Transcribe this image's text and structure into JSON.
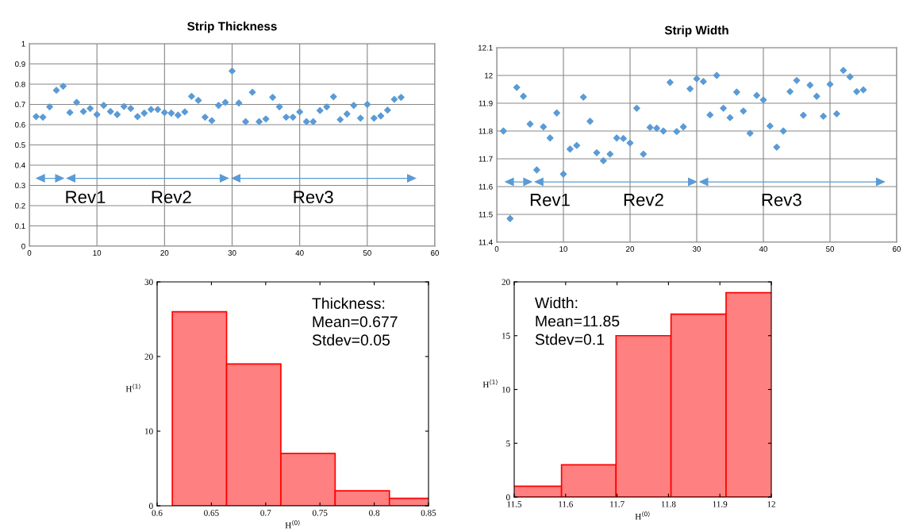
{
  "chart_data": [
    {
      "type": "scatter",
      "title": "Strip Thickness",
      "marker": "diamond",
      "grid": true,
      "color": "#5b9bd5",
      "x": [
        1,
        2,
        3,
        4,
        5,
        6,
        7,
        8,
        9,
        10,
        11,
        12,
        13,
        14,
        15,
        16,
        17,
        18,
        19,
        20,
        21,
        22,
        23,
        24,
        25,
        26,
        27,
        28,
        29,
        30,
        31,
        32,
        33,
        34,
        35,
        36,
        37,
        38,
        39,
        40,
        41,
        42,
        43,
        44,
        45,
        46,
        47,
        48,
        49,
        50,
        51,
        52,
        53,
        54,
        55
      ],
      "values": [
        0.64,
        0.637,
        0.688,
        0.77,
        0.79,
        0.66,
        0.71,
        0.665,
        0.68,
        0.65,
        0.695,
        0.665,
        0.65,
        0.69,
        0.68,
        0.64,
        0.657,
        0.675,
        0.675,
        0.66,
        0.657,
        0.647,
        0.663,
        0.74,
        0.72,
        0.637,
        0.62,
        0.695,
        0.71,
        0.865,
        0.707,
        0.615,
        0.76,
        0.615,
        0.628,
        0.735,
        0.688,
        0.637,
        0.637,
        0.663,
        0.615,
        0.615,
        0.67,
        0.688,
        0.738,
        0.625,
        0.653,
        0.695,
        0.632,
        0.7,
        0.632,
        0.643,
        0.672,
        0.725,
        0.735
      ],
      "xlim": [
        0,
        60
      ],
      "xticks": [
        0,
        10,
        20,
        30,
        40,
        50,
        60
      ],
      "ylim": [
        0,
        1
      ],
      "yticks": [
        0,
        0.1,
        0.2,
        0.3,
        0.4,
        0.5,
        0.6,
        0.7,
        0.8,
        0.9,
        1
      ],
      "annotations": [
        "Rev1",
        "Rev2",
        "Rev3"
      ]
    },
    {
      "type": "scatter",
      "title": "Strip Width",
      "marker": "diamond",
      "grid": true,
      "color": "#5b9bd5",
      "x": [
        1,
        2,
        3,
        4,
        5,
        6,
        7,
        8,
        9,
        10,
        11,
        12,
        13,
        14,
        15,
        16,
        17,
        18,
        19,
        20,
        21,
        22,
        23,
        24,
        25,
        26,
        27,
        28,
        29,
        30,
        31,
        32,
        33,
        34,
        35,
        36,
        37,
        38,
        39,
        40,
        41,
        42,
        43,
        44,
        45,
        46,
        47,
        48,
        49,
        50,
        51,
        52,
        53,
        54,
        55
      ],
      "values": [
        11.8,
        11.485,
        11.957,
        11.925,
        11.825,
        11.66,
        11.815,
        11.775,
        11.865,
        11.645,
        11.735,
        11.748,
        11.922,
        11.835,
        11.722,
        11.693,
        11.717,
        11.775,
        11.773,
        11.757,
        11.882,
        11.717,
        11.813,
        11.81,
        11.8,
        11.975,
        11.798,
        11.815,
        11.952,
        11.988,
        11.978,
        11.858,
        12.0,
        11.882,
        11.848,
        11.94,
        11.872,
        11.792,
        11.928,
        11.912,
        11.818,
        11.742,
        11.8,
        11.942,
        11.982,
        11.857,
        11.965,
        11.925,
        11.853,
        11.968,
        11.862,
        12.018,
        11.995,
        11.942,
        11.948
      ],
      "xlim": [
        0,
        60
      ],
      "xticks": [
        0,
        10,
        20,
        30,
        40,
        50,
        60
      ],
      "ylim": [
        11.4,
        12.1
      ],
      "yticks": [
        11.4,
        11.5,
        11.6,
        11.7,
        11.8,
        11.9,
        12,
        12.1
      ],
      "annotations": [
        "Rev1",
        "Rev2",
        "Rev3"
      ]
    },
    {
      "type": "histogram",
      "color": "#ff8080",
      "bins": [
        0.614,
        0.664,
        0.714,
        0.764,
        0.814,
        0.864
      ],
      "values": [
        26,
        19,
        7,
        2,
        1
      ],
      "xlim": [
        0.6,
        0.85
      ],
      "xticks": [
        0.6,
        0.65,
        0.7,
        0.75,
        0.8,
        0.85
      ],
      "ylim": [
        0,
        30
      ],
      "yticks": [
        0,
        10,
        20,
        30
      ],
      "xlabel": "H$^{⟨0⟩}$",
      "ylabel": "H$^{⟨1⟩}$",
      "annotations": [
        "Thickness:\nMean=0.677\nStdev=0.05"
      ]
    },
    {
      "type": "histogram",
      "color": "#ff8080",
      "bins": [
        11.485,
        11.592,
        11.698,
        11.805,
        11.912,
        12.018
      ],
      "values": [
        1,
        3,
        15,
        17,
        19
      ],
      "xlim": [
        11.5,
        12
      ],
      "xticks": [
        11.5,
        11.6,
        11.7,
        11.8,
        11.9,
        12
      ],
      "ylim": [
        0,
        20
      ],
      "yticks": [
        0,
        5,
        10,
        15,
        20
      ],
      "xlabel": "H$^{⟨0⟩}$",
      "ylabel": "H$^{⟨1⟩}$",
      "annotations": [
        "Width:\nMean=11.85\nStdev=0.1"
      ]
    }
  ]
}
